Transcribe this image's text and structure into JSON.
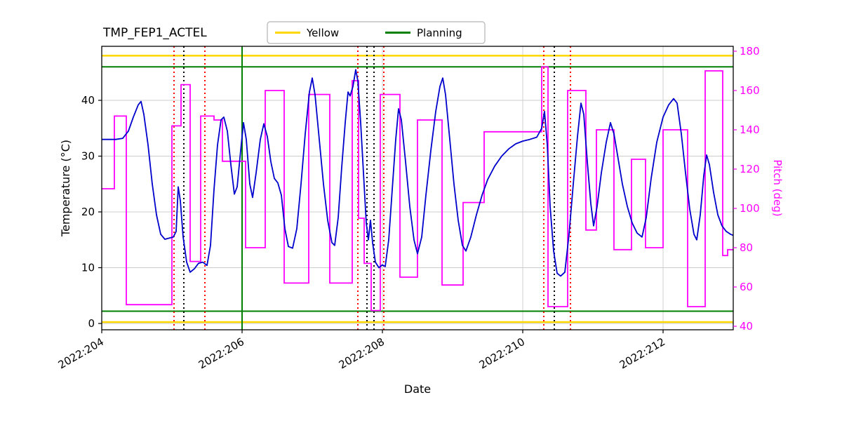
{
  "chart_data": {
    "type": "line",
    "title": "TMP_FEP1_ACTEL",
    "xlabel": "Date",
    "ylabel_left": "Temperature (°C)",
    "ylabel_right": "Pitch (deg)",
    "legend": [
      {
        "label": "Yellow",
        "color": "#FFD700"
      },
      {
        "label": "Planning",
        "color": "#007F00"
      }
    ],
    "colors": {
      "temperature": "#0000CD",
      "pitch": "#FF00FF",
      "grid": "#cccccc",
      "frame": "#000000",
      "red_event": "#FF0000",
      "black_event": "#000000"
    },
    "x_axis": {
      "range": [
        204,
        213
      ],
      "ticks": [
        {
          "value": 204,
          "label": "2022:204"
        },
        {
          "value": 206,
          "label": "2022:206"
        },
        {
          "value": 208,
          "label": "2022:208"
        },
        {
          "value": 210,
          "label": "2022:210"
        },
        {
          "value": 212,
          "label": "2022:212"
        }
      ]
    },
    "temp_axis": {
      "range": [
        -1.13,
        49.69
      ],
      "ticks": [
        0,
        10,
        20,
        30,
        40
      ]
    },
    "pitch_axis": {
      "range": [
        38.2,
        182.5
      ],
      "ticks": [
        40,
        60,
        80,
        100,
        120,
        140,
        160,
        180
      ]
    },
    "horizontal_lines": [
      {
        "name": "yellow-upper-limit",
        "value": 48.0,
        "color": "#FFD700",
        "width": 2.5
      },
      {
        "name": "yellow-lower-limit",
        "value": 0.25,
        "color": "#FFD700",
        "width": 2.5
      },
      {
        "name": "planning-upper-limit",
        "value": 46.0,
        "color": "#007F00",
        "width": 2
      },
      {
        "name": "planning-lower-limit",
        "value": 2.2,
        "color": "#007F00",
        "width": 2
      }
    ],
    "vertical_lines": [
      {
        "x": 206.0,
        "color": "#007F00",
        "style": "solid"
      },
      {
        "x": 205.03,
        "color": "#FF0000",
        "style": "dotted"
      },
      {
        "x": 205.47,
        "color": "#FF0000",
        "style": "dotted"
      },
      {
        "x": 207.65,
        "color": "#FF0000",
        "style": "dotted"
      },
      {
        "x": 208.02,
        "color": "#FF0000",
        "style": "dotted"
      },
      {
        "x": 210.3,
        "color": "#FF0000",
        "style": "dotted"
      },
      {
        "x": 210.68,
        "color": "#FF0000",
        "style": "dotted"
      },
      {
        "x": 205.17,
        "color": "#000000",
        "style": "dotted"
      },
      {
        "x": 207.78,
        "color": "#000000",
        "style": "dotted"
      },
      {
        "x": 207.88,
        "color": "#000000",
        "style": "dotted"
      },
      {
        "x": 210.45,
        "color": "#000000",
        "style": "dotted"
      }
    ],
    "series": {
      "temperature": {
        "name": "temperature",
        "points": [
          [
            204.0,
            33.0
          ],
          [
            204.1,
            33.0
          ],
          [
            204.2,
            33.0
          ],
          [
            204.3,
            33.2
          ],
          [
            204.38,
            34.5
          ],
          [
            204.45,
            37.0
          ],
          [
            204.52,
            39.2
          ],
          [
            204.56,
            39.8
          ],
          [
            204.6,
            37.5
          ],
          [
            204.66,
            32.0
          ],
          [
            204.72,
            25.0
          ],
          [
            204.78,
            19.5
          ],
          [
            204.84,
            16.0
          ],
          [
            204.9,
            15.1
          ],
          [
            204.96,
            15.3
          ],
          [
            205.02,
            15.5
          ],
          [
            205.06,
            16.5
          ],
          [
            205.09,
            24.5
          ],
          [
            205.12,
            22.0
          ],
          [
            205.16,
            15.5
          ],
          [
            205.21,
            11.0
          ],
          [
            205.26,
            9.2
          ],
          [
            205.32,
            9.8
          ],
          [
            205.38,
            10.8
          ],
          [
            205.44,
            11.0
          ],
          [
            205.5,
            10.4
          ],
          [
            205.55,
            14.0
          ],
          [
            205.6,
            24.0
          ],
          [
            205.65,
            32.0
          ],
          [
            205.7,
            36.5
          ],
          [
            205.74,
            37.0
          ],
          [
            205.79,
            34.5
          ],
          [
            205.84,
            28.5
          ],
          [
            205.89,
            23.2
          ],
          [
            205.93,
            24.5
          ],
          [
            205.98,
            31.0
          ],
          [
            206.02,
            36.0
          ],
          [
            206.06,
            33.0
          ],
          [
            206.11,
            25.0
          ],
          [
            206.15,
            22.6
          ],
          [
            206.2,
            27.0
          ],
          [
            206.26,
            33.0
          ],
          [
            206.31,
            35.8
          ],
          [
            206.36,
            33.5
          ],
          [
            206.41,
            29.0
          ],
          [
            206.46,
            26.0
          ],
          [
            206.51,
            25.2
          ],
          [
            206.56,
            23.0
          ],
          [
            206.61,
            17.0
          ],
          [
            206.66,
            13.8
          ],
          [
            206.72,
            13.5
          ],
          [
            206.78,
            17.0
          ],
          [
            206.84,
            25.0
          ],
          [
            206.9,
            34.0
          ],
          [
            206.96,
            41.5
          ],
          [
            207.0,
            44.0
          ],
          [
            207.04,
            41.0
          ],
          [
            207.1,
            33.0
          ],
          [
            207.16,
            25.0
          ],
          [
            207.22,
            18.5
          ],
          [
            207.28,
            14.5
          ],
          [
            207.32,
            14.0
          ],
          [
            207.37,
            19.0
          ],
          [
            207.42,
            28.0
          ],
          [
            207.47,
            36.0
          ],
          [
            207.51,
            41.5
          ],
          [
            207.54,
            40.8
          ],
          [
            207.58,
            42.5
          ],
          [
            207.62,
            45.5
          ],
          [
            207.65,
            43.5
          ],
          [
            207.69,
            36.0
          ],
          [
            207.73,
            27.0
          ],
          [
            207.77,
            18.0
          ],
          [
            207.8,
            15.0
          ],
          [
            207.83,
            18.5
          ],
          [
            207.86,
            14.5
          ],
          [
            207.9,
            11.0
          ],
          [
            207.95,
            10.0
          ],
          [
            208.0,
            10.5
          ],
          [
            208.04,
            10.2
          ],
          [
            208.09,
            15.0
          ],
          [
            208.14,
            24.0
          ],
          [
            208.19,
            33.0
          ],
          [
            208.23,
            38.5
          ],
          [
            208.27,
            36.5
          ],
          [
            208.33,
            29.0
          ],
          [
            208.39,
            21.0
          ],
          [
            208.45,
            15.0
          ],
          [
            208.5,
            12.5
          ],
          [
            208.56,
            15.5
          ],
          [
            208.62,
            23.0
          ],
          [
            208.69,
            31.0
          ],
          [
            208.76,
            38.0
          ],
          [
            208.82,
            42.5
          ],
          [
            208.86,
            44.0
          ],
          [
            208.9,
            41.0
          ],
          [
            208.96,
            33.0
          ],
          [
            209.02,
            25.0
          ],
          [
            209.08,
            18.5
          ],
          [
            209.14,
            14.0
          ],
          [
            209.19,
            13.0
          ],
          [
            209.26,
            15.5
          ],
          [
            209.34,
            19.5
          ],
          [
            209.42,
            23.0
          ],
          [
            209.5,
            25.8
          ],
          [
            209.6,
            28.2
          ],
          [
            209.7,
            30.0
          ],
          [
            209.8,
            31.3
          ],
          [
            209.9,
            32.2
          ],
          [
            210.0,
            32.7
          ],
          [
            210.1,
            33.0
          ],
          [
            210.2,
            33.4
          ],
          [
            210.27,
            35.0
          ],
          [
            210.31,
            38.0
          ],
          [
            210.35,
            32.0
          ],
          [
            210.39,
            21.0
          ],
          [
            210.44,
            13.0
          ],
          [
            210.49,
            9.0
          ],
          [
            210.54,
            8.5
          ],
          [
            210.6,
            9.2
          ],
          [
            210.66,
            16.0
          ],
          [
            210.72,
            25.0
          ],
          [
            210.78,
            33.5
          ],
          [
            210.83,
            39.5
          ],
          [
            210.87,
            37.5
          ],
          [
            210.92,
            29.0
          ],
          [
            210.97,
            21.5
          ],
          [
            211.01,
            17.5
          ],
          [
            211.06,
            21.0
          ],
          [
            211.12,
            27.0
          ],
          [
            211.19,
            32.5
          ],
          [
            211.25,
            36.0
          ],
          [
            211.3,
            34.0
          ],
          [
            211.36,
            29.5
          ],
          [
            211.42,
            25.0
          ],
          [
            211.49,
            21.0
          ],
          [
            211.56,
            18.0
          ],
          [
            211.63,
            16.2
          ],
          [
            211.7,
            15.5
          ],
          [
            211.76,
            19.0
          ],
          [
            211.83,
            26.0
          ],
          [
            211.91,
            32.5
          ],
          [
            212.0,
            37.0
          ],
          [
            212.08,
            39.2
          ],
          [
            212.15,
            40.3
          ],
          [
            212.2,
            39.5
          ],
          [
            212.26,
            34.0
          ],
          [
            212.32,
            27.0
          ],
          [
            212.38,
            20.5
          ],
          [
            212.44,
            16.0
          ],
          [
            212.48,
            15.0
          ],
          [
            212.53,
            19.5
          ],
          [
            212.58,
            26.5
          ],
          [
            212.62,
            30.2
          ],
          [
            212.66,
            28.5
          ],
          [
            212.72,
            23.5
          ],
          [
            212.78,
            19.5
          ],
          [
            212.84,
            17.5
          ],
          [
            212.9,
            16.5
          ],
          [
            212.96,
            16.0
          ],
          [
            213.0,
            15.8
          ]
        ]
      },
      "pitch": {
        "name": "pitch",
        "step": true,
        "points": [
          [
            204.0,
            110
          ],
          [
            204.18,
            147
          ],
          [
            204.35,
            51
          ],
          [
            205.0,
            142
          ],
          [
            205.13,
            163
          ],
          [
            205.26,
            73
          ],
          [
            205.41,
            147
          ],
          [
            205.6,
            145
          ],
          [
            205.72,
            124
          ],
          [
            206.05,
            80
          ],
          [
            206.33,
            160
          ],
          [
            206.6,
            62
          ],
          [
            206.95,
            158
          ],
          [
            207.25,
            62
          ],
          [
            207.57,
            165
          ],
          [
            207.66,
            95
          ],
          [
            207.74,
            72
          ],
          [
            207.84,
            48
          ],
          [
            207.97,
            158
          ],
          [
            208.25,
            65
          ],
          [
            208.5,
            145
          ],
          [
            208.85,
            61
          ],
          [
            209.15,
            103
          ],
          [
            209.45,
            139
          ],
          [
            210.27,
            172
          ],
          [
            210.36,
            50
          ],
          [
            210.64,
            160
          ],
          [
            210.9,
            89
          ],
          [
            211.05,
            140
          ],
          [
            211.3,
            79
          ],
          [
            211.55,
            125
          ],
          [
            211.75,
            80
          ],
          [
            212.0,
            140
          ],
          [
            212.35,
            50
          ],
          [
            212.6,
            170
          ],
          [
            212.85,
            76
          ],
          [
            212.92,
            79
          ]
        ]
      }
    }
  }
}
